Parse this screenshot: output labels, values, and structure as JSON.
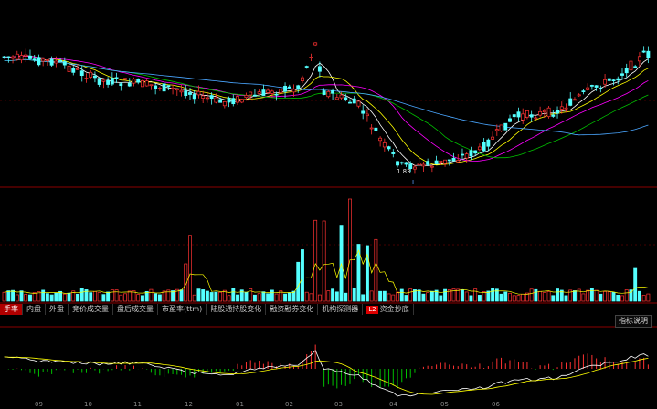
{
  "tabs": [
    {
      "label": "手率",
      "active": true
    },
    {
      "label": "内盘",
      "active": false
    },
    {
      "label": "外盘",
      "active": false
    },
    {
      "label": "竞价成交量",
      "active": false
    },
    {
      "label": "盘后成交量",
      "active": false
    },
    {
      "label": "市盈率(ttm)",
      "active": false
    },
    {
      "label": "陆股通持股变化",
      "active": false
    },
    {
      "label": "融资融券变化",
      "active": false
    },
    {
      "label": "机构探测器",
      "active": false
    },
    {
      "label": "资金抄底",
      "active": false,
      "badge": "L2"
    }
  ],
  "help_button": "指标说明",
  "price_annotation": "1.83",
  "low_marker": "L",
  "x_axis_labels": [
    "09",
    "10",
    "11",
    "12",
    "01",
    "02",
    "03",
    "04",
    "05",
    "06"
  ],
  "colors": {
    "up": "#ff3232",
    "down": "#54ffff",
    "ma5": "#ffffff",
    "ma10": "#ffff00",
    "ma20": "#ff00ff",
    "ma30": "#00c000",
    "ma60": "#4aa6ff",
    "separator": "#8b0000",
    "macd_pos": "#ff3232",
    "macd_neg": "#00c000"
  }
}
